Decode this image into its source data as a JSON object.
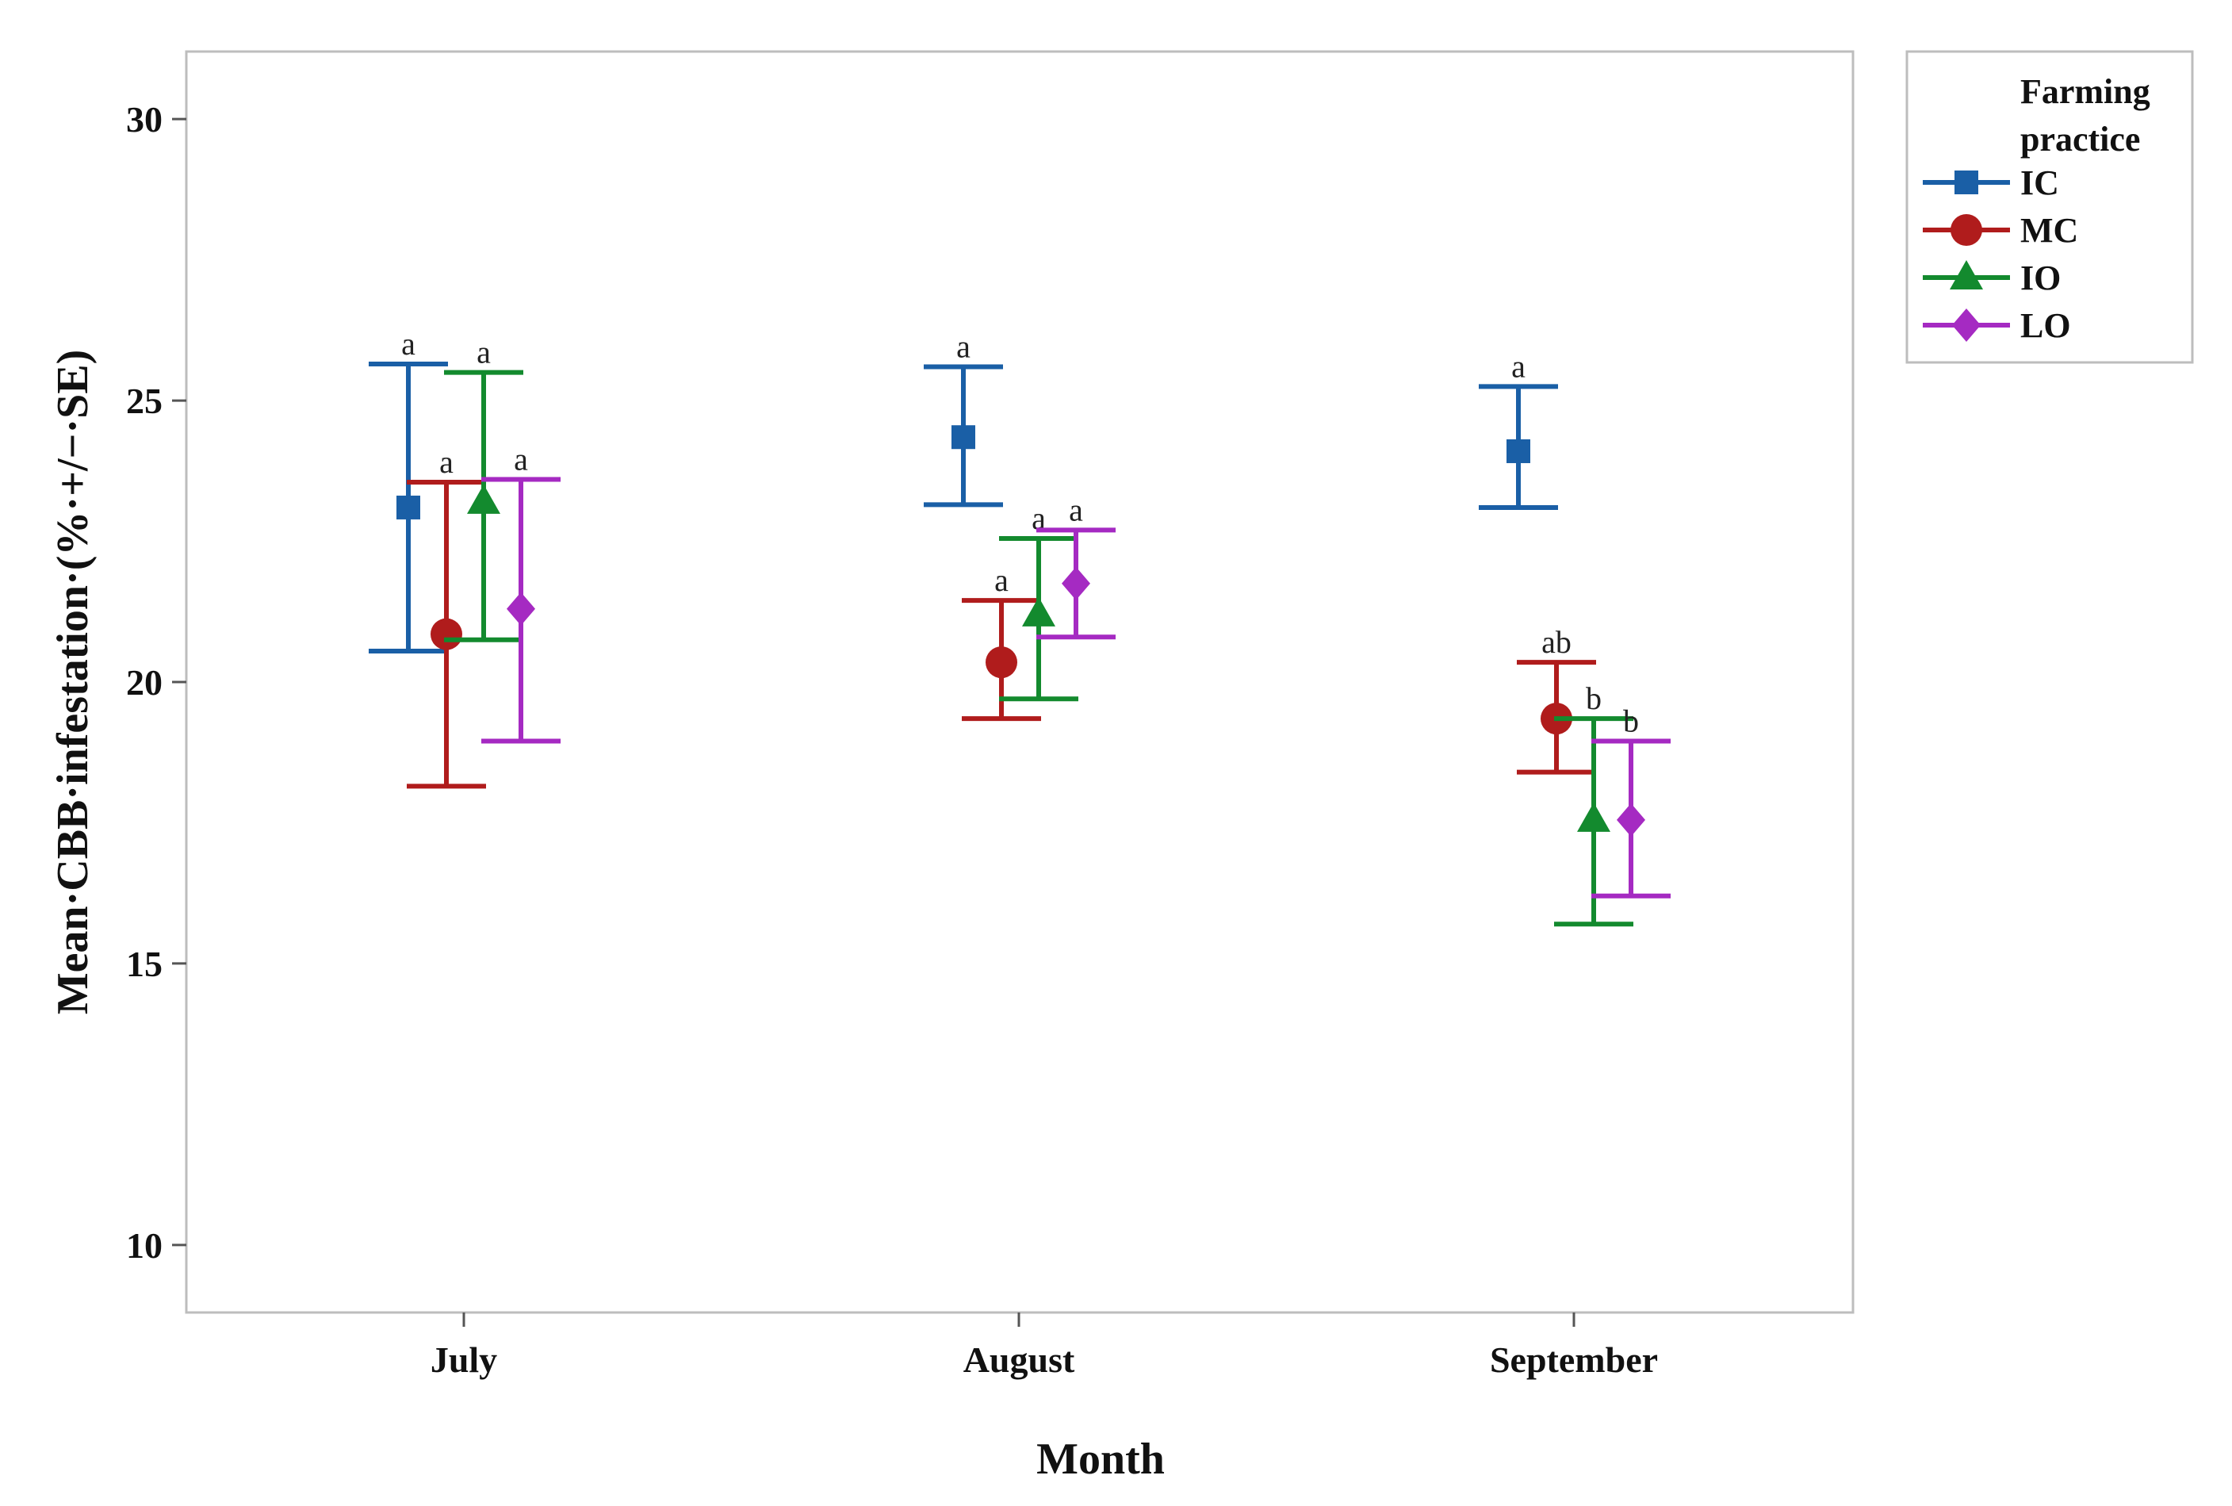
{
  "chart_data": {
    "type": "errorbar",
    "xlabel": "Month",
    "ylabel": "Mean·CBB·infestation·(%·+/−·SE)",
    "ylim": [
      8.8,
      31.2
    ],
    "yticks": [
      10,
      15,
      20,
      25,
      30
    ],
    "categories": [
      "July",
      "August",
      "September"
    ],
    "legend": {
      "title": "Farming practice",
      "title_lines": [
        "Farming",
        "practice"
      ],
      "position": "outside-right-top"
    },
    "series": [
      {
        "name": "IC",
        "color": "#1a5fa6",
        "marker": "square",
        "mean": [
          23.1,
          24.35,
          24.1
        ],
        "lower": [
          20.55,
          23.15,
          23.1
        ],
        "upper": [
          25.65,
          25.6,
          25.25
        ],
        "letters": [
          "a",
          "a",
          "a"
        ]
      },
      {
        "name": "MC",
        "color": "#b01c1c",
        "marker": "circle",
        "mean": [
          20.85,
          20.35,
          19.35
        ],
        "lower": [
          18.15,
          19.35,
          18.4
        ],
        "upper": [
          23.55,
          21.45,
          20.35
        ],
        "letters": [
          "a",
          "a",
          "ab"
        ]
      },
      {
        "name": "IO",
        "color": "#138a2e",
        "marker": "triangle",
        "mean": [
          23.2,
          21.2,
          17.55
        ],
        "lower": [
          20.75,
          19.7,
          15.7
        ],
        "upper": [
          25.5,
          22.55,
          19.35
        ],
        "letters": [
          "a",
          "a",
          "b"
        ]
      },
      {
        "name": "LO",
        "color": "#a52ac2",
        "marker": "diamond",
        "mean": [
          21.3,
          21.75,
          17.55
        ],
        "lower": [
          18.95,
          20.8,
          16.2
        ],
        "upper": [
          23.6,
          22.7,
          18.95
        ],
        "letters": [
          "a",
          "a",
          "b"
        ]
      }
    ]
  }
}
